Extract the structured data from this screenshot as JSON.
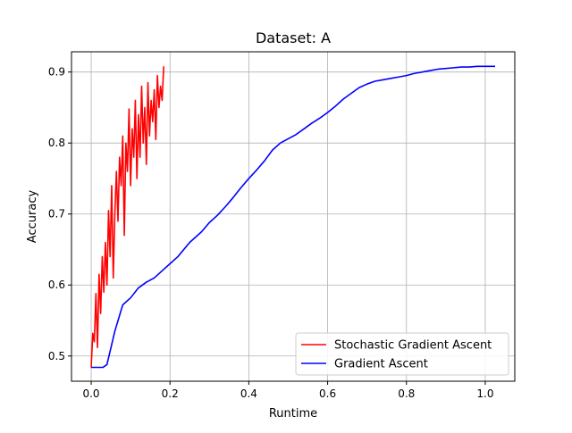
{
  "chart_data": {
    "type": "line",
    "title": "Dataset: A",
    "xlabel": "Runtime",
    "ylabel": "Accuracy",
    "xlim": [
      -0.05,
      1.075
    ],
    "ylim": [
      0.4645,
      0.9285
    ],
    "xticks": [
      0.0,
      0.2,
      0.4,
      0.6,
      0.8,
      1.0
    ],
    "xtick_labels": [
      "0.0",
      "0.2",
      "0.4",
      "0.6",
      "0.8",
      "1.0"
    ],
    "yticks": [
      0.5,
      0.6,
      0.7,
      0.8,
      0.9
    ],
    "ytick_labels": [
      "0.5",
      "0.6",
      "0.7",
      "0.8",
      "0.9"
    ],
    "grid": true,
    "legend_position": "lower-right",
    "series": [
      {
        "name": "Stochastic Gradient Ascent",
        "color": "#ff0000",
        "x": [
          0.0,
          0.004,
          0.008,
          0.012,
          0.016,
          0.02,
          0.024,
          0.028,
          0.032,
          0.036,
          0.04,
          0.044,
          0.048,
          0.052,
          0.056,
          0.06,
          0.064,
          0.068,
          0.072,
          0.076,
          0.08,
          0.084,
          0.088,
          0.092,
          0.096,
          0.1,
          0.104,
          0.108,
          0.112,
          0.116,
          0.12,
          0.124,
          0.128,
          0.132,
          0.136,
          0.14,
          0.144,
          0.148,
          0.152,
          0.156,
          0.16,
          0.164,
          0.168,
          0.172,
          0.176,
          0.18,
          0.184
        ],
        "y": [
          0.484,
          0.532,
          0.52,
          0.588,
          0.512,
          0.615,
          0.56,
          0.64,
          0.59,
          0.66,
          0.6,
          0.705,
          0.64,
          0.74,
          0.61,
          0.7,
          0.76,
          0.69,
          0.78,
          0.74,
          0.81,
          0.67,
          0.8,
          0.76,
          0.848,
          0.74,
          0.82,
          0.78,
          0.86,
          0.75,
          0.84,
          0.78,
          0.88,
          0.8,
          0.85,
          0.77,
          0.885,
          0.81,
          0.86,
          0.83,
          0.875,
          0.805,
          0.895,
          0.85,
          0.88,
          0.86,
          0.908
        ]
      },
      {
        "name": "Gradient Ascent",
        "color": "#0000ff",
        "x": [
          0.0,
          0.02,
          0.03,
          0.04,
          0.06,
          0.08,
          0.1,
          0.12,
          0.14,
          0.16,
          0.18,
          0.2,
          0.22,
          0.25,
          0.28,
          0.3,
          0.32,
          0.34,
          0.36,
          0.38,
          0.4,
          0.42,
          0.44,
          0.46,
          0.48,
          0.5,
          0.52,
          0.54,
          0.56,
          0.58,
          0.6,
          0.62,
          0.64,
          0.66,
          0.68,
          0.7,
          0.72,
          0.74,
          0.76,
          0.78,
          0.8,
          0.82,
          0.84,
          0.86,
          0.88,
          0.9,
          0.92,
          0.94,
          0.96,
          0.98,
          1.0,
          1.025
        ],
        "y": [
          0.484,
          0.484,
          0.484,
          0.488,
          0.535,
          0.572,
          0.582,
          0.596,
          0.604,
          0.61,
          0.62,
          0.63,
          0.64,
          0.66,
          0.675,
          0.688,
          0.698,
          0.71,
          0.723,
          0.737,
          0.75,
          0.762,
          0.775,
          0.79,
          0.8,
          0.806,
          0.812,
          0.82,
          0.828,
          0.835,
          0.843,
          0.852,
          0.862,
          0.87,
          0.878,
          0.883,
          0.887,
          0.889,
          0.891,
          0.893,
          0.895,
          0.898,
          0.9,
          0.902,
          0.904,
          0.905,
          0.906,
          0.907,
          0.907,
          0.908,
          0.908,
          0.908
        ]
      }
    ]
  }
}
